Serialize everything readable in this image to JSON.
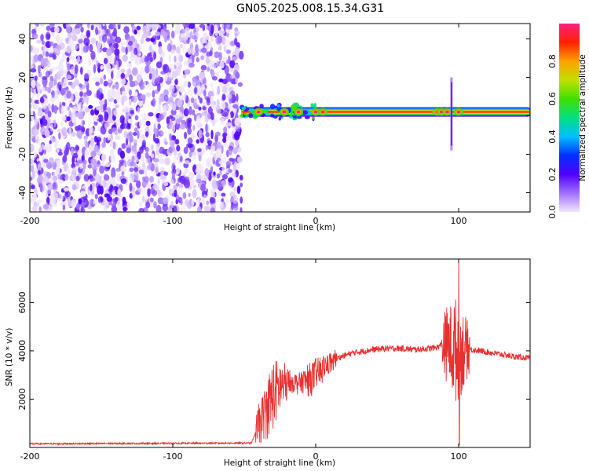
{
  "title": "GN05.2025.008.15.34.G31",
  "chart_data": [
    {
      "type": "heatmap",
      "xlabel": "Height of straight line (km)",
      "ylabel": "Frequency (Hz)",
      "xlim": [
        -200,
        150
      ],
      "ylim": [
        -50,
        48
      ],
      "xticks": [
        "-200",
        "-100",
        "0",
        "100"
      ],
      "xtick_values": [
        -200,
        -100,
        0,
        100
      ],
      "yticks": [
        "-40",
        "-20",
        "0",
        "20",
        "40"
      ],
      "ytick_values": [
        -40,
        -20,
        0,
        20,
        40
      ],
      "noise_region_x": [
        -200,
        -52
      ],
      "ridge": {
        "x_start": -52,
        "x_end": 150,
        "frequency": 2
      },
      "hotspot_x": [
        -40,
        -22,
        -12,
        0,
        5,
        85,
        88,
        92,
        100
      ],
      "spike": {
        "x": 95,
        "frequency_range": [
          -18,
          20
        ]
      },
      "colorbar": {
        "label": "Normalized spectral amplitude",
        "ticks": [
          "0.0",
          "0.2",
          "0.4",
          "0.6",
          "0.8"
        ],
        "tick_values": [
          0,
          0.2,
          0.4,
          0.6,
          0.8
        ],
        "range": [
          0,
          1
        ],
        "colormap": [
          "#f0e6ff",
          "#a070ff",
          "#5000ff",
          "#0030ff",
          "#00c0ff",
          "#00e080",
          "#40e000",
          "#c0e000",
          "#ffa000",
          "#ff2000",
          "#ff2080"
        ]
      }
    },
    {
      "type": "line",
      "xlabel": "Height of straight line (km)",
      "ylabel": "SNR (10 * v/v)",
      "xlim": [
        -200,
        150
      ],
      "ylim": [
        0,
        7800
      ],
      "xticks": [
        "-200",
        "-100",
        "0",
        "100"
      ],
      "xtick_values": [
        -200,
        -100,
        0,
        100
      ],
      "yticks": [
        "2000",
        "4000",
        "6000"
      ],
      "ytick_values": [
        2000,
        4000,
        6000
      ],
      "line_color": "#e83030",
      "series": [
        {
          "x": [
            -200,
            -150,
            -100,
            -60,
            -45,
            -40,
            -35,
            -30,
            -25,
            -20,
            -15,
            -10,
            -5,
            0,
            5,
            10,
            15,
            20,
            25,
            30,
            40,
            50,
            60,
            70,
            80,
            85,
            88,
            92,
            95,
            98,
            100,
            102,
            105,
            110,
            120,
            130,
            140,
            150
          ],
          "values": [
            150,
            160,
            170,
            180,
            180,
            900,
            1500,
            2200,
            2500,
            2600,
            2700,
            2700,
            2800,
            3000,
            3300,
            3500,
            3700,
            3800,
            3900,
            3950,
            4050,
            4100,
            4100,
            4050,
            4100,
            4150,
            4250,
            4300,
            4200,
            4000,
            3900,
            4000,
            4050,
            4050,
            3950,
            3850,
            3750,
            3700
          ]
        }
      ],
      "oscillation_bursts": [
        {
          "x_range": [
            -42,
            -18
          ],
          "amplitude": 1500
        },
        {
          "x_range": [
            -18,
            15
          ],
          "amplitude": 700
        },
        {
          "x_range": [
            88,
            108
          ],
          "amplitude": 2300
        }
      ],
      "peak": {
        "x": 100,
        "value": 7900,
        "min": 100
      }
    }
  ]
}
